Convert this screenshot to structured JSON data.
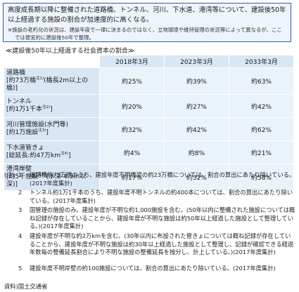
{
  "intro": {
    "lead": "高度成長期以降に整備された道路橋、トンネル、河川、下水道、港湾等について、建設後50年以上経過する施設の割合が加速度的に高くなる。",
    "note": "※施設の老朽化の状況は、建設年度で一律に決まるのではなく、立地環境や維持管理の状況等によって異なるが、ここでは便宜的に建設後50年で整理。"
  },
  "table": {
    "caption": "≪建設後50年以上経過する社会資本の割合≫",
    "headers": [
      "2018年3月",
      "2023年3月",
      "2033年3月"
    ],
    "rows": [
      {
        "cat": "道路橋",
        "desc": "[約73万橋",
        "sup": "注1)",
        "desc2": "(橋長2m以上の橋)]",
        "values": [
          "約25%",
          "約39%",
          "約63%"
        ]
      },
      {
        "cat": "トンネル",
        "desc": "[約1万1千本",
        "sup": "注2)",
        "desc2": "]",
        "values": [
          "約20%",
          "約27%",
          "約42%"
        ]
      },
      {
        "cat": "河川管理施設(水門等)",
        "desc": "[約1万施設",
        "sup": "注3)",
        "desc2": "]",
        "values": [
          "約32%",
          "約42%",
          "約62%"
        ]
      },
      {
        "cat": "下水道管きょ",
        "desc": "[総延長:約47万km",
        "sup": "注4)",
        "desc2": "]",
        "values": [
          "約4%",
          "約8%",
          "約21%"
        ]
      },
      {
        "cat": "港湾岸壁",
        "desc": "[約5千施設",
        "sup": "注5)",
        "desc2": "(水深-4.5m以深)]",
        "values": [
          "約17%",
          "約32%",
          "約58%"
        ]
      }
    ]
  },
  "notes": {
    "head": "(注)",
    "items": [
      {
        "num": "1",
        "text": "道路橋約73万橋のうち、建設年度不明橋梁の約23万橋については、割合の算出にあたり除いている。(2017年度集計)"
      },
      {
        "num": "2",
        "text": "トンネル約1万1千本のうち、建設年度不明トンネルの約400本については、割合の算出にあたり除いている。(2017年度集計)"
      },
      {
        "num": "3",
        "text": "国管理の施設のみ。建設年度が不明な約1,000施設を含む。(50年以内に整備された施設については概ね記録が存在していることから、建設年度が不明な施設は約50年以上経過した施設として整理している。)(2017年度集計)"
      },
      {
        "num": "4",
        "text": "建設年度が不明な約2万kmを含む。(30年以内に布設された管きょについては概ね記録が存在していることから、建設年度が不明な施設は約30年以上経過した施設として整理し、記録が確認できる経過年数毎の整備延長割合により不明な施設の整備延長を按分し、計上している。)(2017年度集計)"
      },
      {
        "num": "5",
        "text": "建設年度不明岸壁の約100施設については、割合の算出にあたり除いている。(2017年度集計)"
      }
    ]
  },
  "source": "資料)国土交通省"
}
